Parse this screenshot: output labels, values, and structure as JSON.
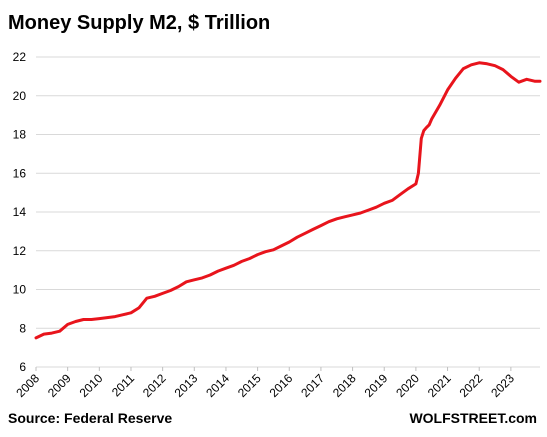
{
  "chart_data": {
    "type": "line",
    "title": "Money Supply M2, $ Trillion",
    "xlabel": "",
    "ylabel": "",
    "ylim": [
      6,
      22
    ],
    "yticks": [
      6,
      8,
      10,
      12,
      14,
      16,
      18,
      20,
      22
    ],
    "xlim": [
      2008.0,
      2023.92
    ],
    "xticks": [
      2008,
      2009,
      2010,
      2011,
      2012,
      2013,
      2014,
      2015,
      2016,
      2017,
      2018,
      2019,
      2020,
      2021,
      2022,
      2023
    ],
    "grid": "horizontal",
    "color": "#e8141c",
    "series": [
      {
        "x": [
          2008.0,
          2008.25,
          2008.5,
          2008.75,
          2009.0,
          2009.25,
          2009.5,
          2009.75,
          2010.0,
          2010.25,
          2010.5,
          2010.75,
          2011.0,
          2011.25,
          2011.5,
          2011.75,
          2012.0,
          2012.25,
          2012.5,
          2012.75,
          2013.0,
          2013.25,
          2013.5,
          2013.75,
          2014.0,
          2014.25,
          2014.5,
          2014.75,
          2015.0,
          2015.25,
          2015.5,
          2015.75,
          2016.0,
          2016.25,
          2016.5,
          2016.75,
          2017.0,
          2017.25,
          2017.5,
          2017.75,
          2018.0,
          2018.25,
          2018.5,
          2018.75,
          2019.0,
          2019.25,
          2019.5,
          2019.75,
          2020.0,
          2020.08,
          2020.17,
          2020.25,
          2020.33,
          2020.42,
          2020.5,
          2020.75,
          2021.0,
          2021.25,
          2021.5,
          2021.75,
          2022.0,
          2022.25,
          2022.5,
          2022.75,
          2023.0,
          2023.25,
          2023.5,
          2023.75,
          2023.92
        ],
        "y": [
          7.5,
          7.7,
          7.75,
          7.85,
          8.2,
          8.35,
          8.45,
          8.45,
          8.5,
          8.55,
          8.6,
          8.7,
          8.8,
          9.05,
          9.55,
          9.65,
          9.8,
          9.95,
          10.15,
          10.4,
          10.5,
          10.6,
          10.75,
          10.95,
          11.1,
          11.25,
          11.45,
          11.6,
          11.8,
          11.95,
          12.05,
          12.25,
          12.45,
          12.7,
          12.9,
          13.1,
          13.3,
          13.5,
          13.65,
          13.75,
          13.85,
          13.95,
          14.1,
          14.25,
          14.45,
          14.6,
          14.9,
          15.2,
          15.45,
          16.0,
          17.8,
          18.2,
          18.35,
          18.5,
          18.8,
          19.5,
          20.3,
          20.9,
          21.4,
          21.6,
          21.7,
          21.65,
          21.55,
          21.35,
          21.0,
          20.7,
          20.85,
          20.75,
          20.75
        ]
      }
    ]
  },
  "footer": {
    "source": "Source: Federal Reserve",
    "brand": "WOLFSTREET.com"
  }
}
